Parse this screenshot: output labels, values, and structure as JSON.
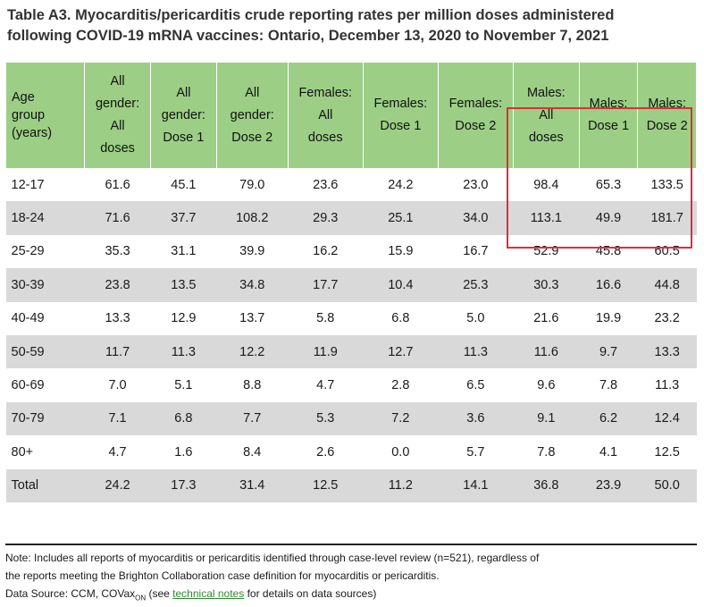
{
  "title_line1": "Table A3. Myocarditis/pericarditis crude reporting rates per million doses administered",
  "title_line2": "following COVID-19 mRNA vaccines: Ontario, December 13, 2020 to November 7, 2021",
  "headers": [
    [
      "Age",
      "group",
      "(years)"
    ],
    [
      "All",
      "gender:",
      "All",
      "doses"
    ],
    [
      "All",
      "gender:",
      "Dose 1"
    ],
    [
      "All",
      "gender:",
      "Dose 2"
    ],
    [
      "Females:",
      "All",
      "doses"
    ],
    [
      "Females:",
      "Dose 1"
    ],
    [
      "Females:",
      "Dose 2"
    ],
    [
      "Males:",
      "All",
      "doses"
    ],
    [
      "Males:",
      "Dose 1"
    ],
    [
      "Males:",
      "Dose 2"
    ]
  ],
  "rows": [
    [
      "12-17",
      "61.6",
      "45.1",
      "79.0",
      "23.6",
      "24.2",
      "23.0",
      "98.4",
      "65.3",
      "133.5"
    ],
    [
      "18-24",
      "71.6",
      "37.7",
      "108.2",
      "29.3",
      "25.1",
      "34.0",
      "113.1",
      "49.9",
      "181.7"
    ],
    [
      "25-29",
      "35.3",
      "31.1",
      "39.9",
      "16.2",
      "15.9",
      "16.7",
      "52.9",
      "45.8",
      "60.5"
    ],
    [
      "30-39",
      "23.8",
      "13.5",
      "34.8",
      "17.7",
      "10.4",
      "25.3",
      "30.3",
      "16.6",
      "44.8"
    ],
    [
      "40-49",
      "13.3",
      "12.9",
      "13.7",
      "5.8",
      "6.8",
      "5.0",
      "21.6",
      "19.9",
      "23.2"
    ],
    [
      "50-59",
      "11.7",
      "11.3",
      "12.2",
      "11.9",
      "12.7",
      "11.3",
      "11.6",
      "9.7",
      "13.3"
    ],
    [
      "60-69",
      "7.0",
      "5.1",
      "8.8",
      "4.7",
      "2.8",
      "6.5",
      "9.6",
      "7.8",
      "11.3"
    ],
    [
      "70-79",
      "7.1",
      "6.8",
      "7.7",
      "5.3",
      "7.2",
      "3.6",
      "9.1",
      "6.2",
      "12.4"
    ],
    [
      "80+",
      "4.7",
      "1.6",
      "8.4",
      "2.6",
      "0.0",
      "5.7",
      "7.8",
      "4.1",
      "12.5"
    ],
    [
      "Total",
      "24.2",
      "17.3",
      "31.4",
      "12.5",
      "11.2",
      "14.1",
      "36.8",
      "23.9",
      "50.0"
    ]
  ],
  "note_line1": "Note: Includes all reports of myocarditis or pericarditis identified through case-level review (n=521), regardless of",
  "note_line2": "the reports meeting the Brighton Collaboration case definition for myocarditis or pericarditis.",
  "source_prefix": "Data Source: CCM, COVax",
  "source_sub": "ON",
  "source_middle": " (see ",
  "source_link": "technical notes",
  "source_suffix": " for details on data sources)",
  "colors": {
    "header_bg": "#9ccf85",
    "row_shade": "#d9d9d9",
    "highlight": "#d9303a",
    "link": "#2e8b2e"
  }
}
